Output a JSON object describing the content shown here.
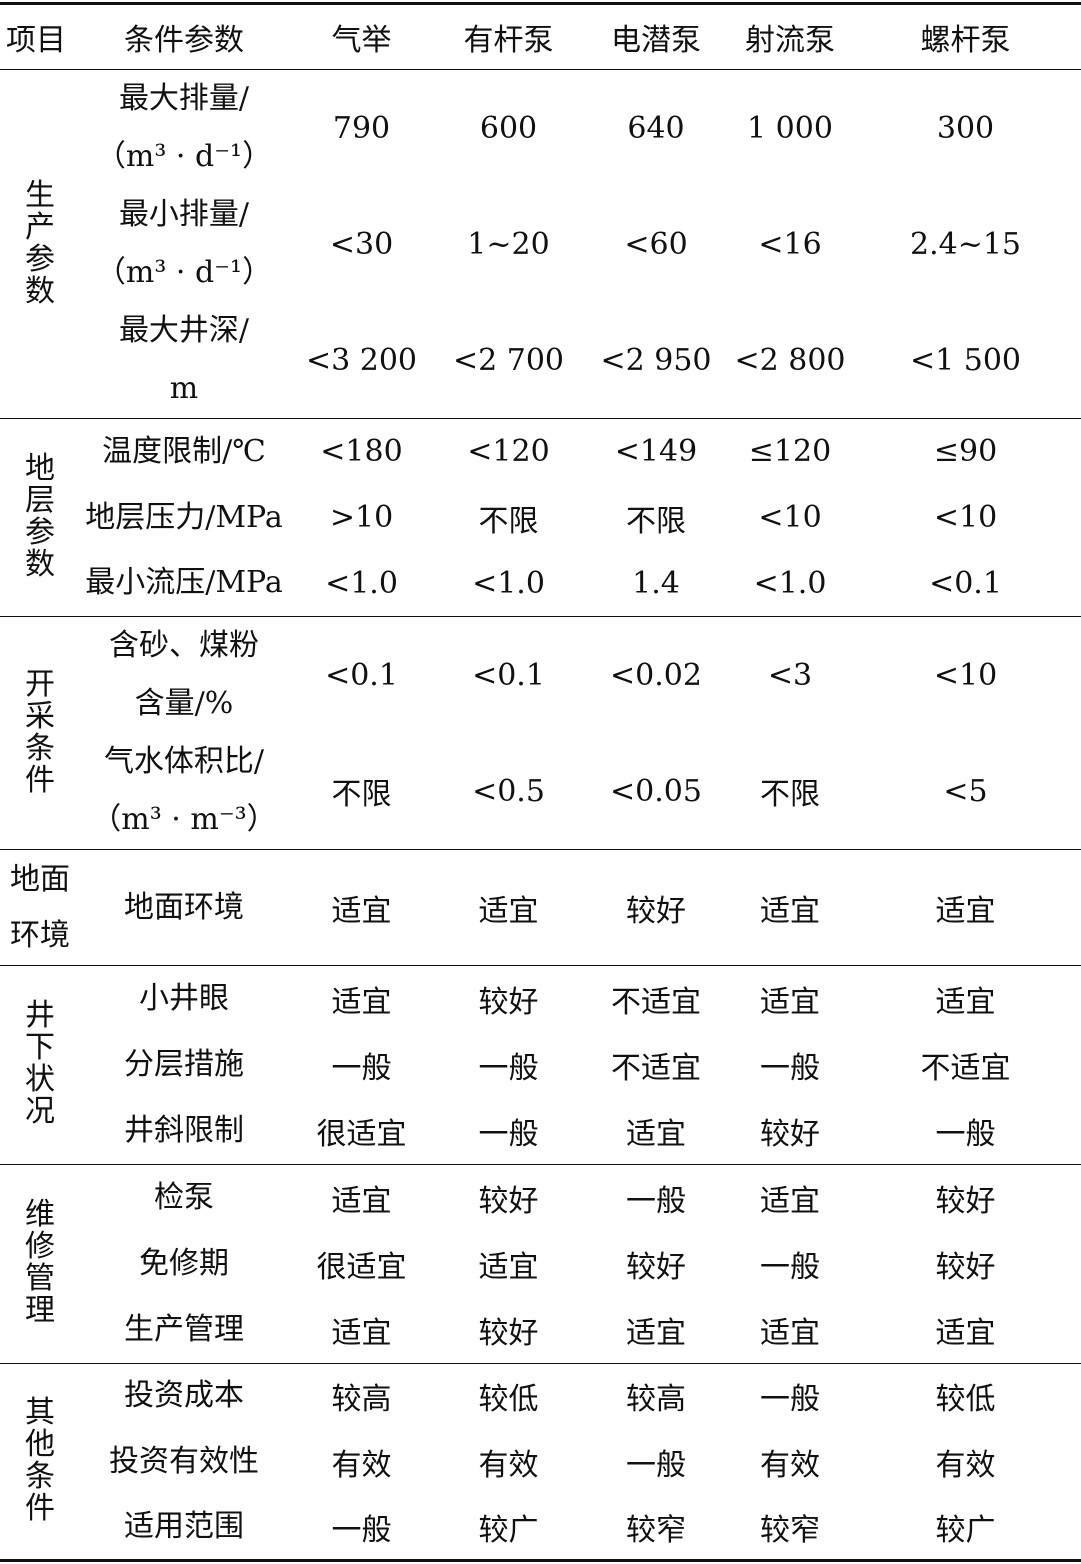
{
  "header": [
    "项目",
    "条件参数",
    "气举",
    "有杆泵",
    "电潜泵",
    "射流泵",
    "螺杆泵"
  ],
  "sections": [
    {
      "label": "生产参数",
      "style": "vertical",
      "row_height": 116,
      "rows": [
        {
          "param": [
            "最大排量/",
            "（m³ · d⁻¹）"
          ],
          "values": [
            "790",
            "600",
            "640",
            "1 000",
            "300"
          ]
        },
        {
          "param": [
            "最小排量/",
            "（m³ · d⁻¹）"
          ],
          "values": [
            "<30",
            "1~20",
            "<60",
            "<16",
            "2.4~15"
          ]
        },
        {
          "param": [
            "最大井深/",
            "m"
          ],
          "values": [
            "<3 200",
            "<2 700",
            "<2 950",
            "<2 800",
            "<1 500"
          ]
        }
      ]
    },
    {
      "label": "地层参数",
      "style": "vertical",
      "row_height": 66,
      "rows": [
        {
          "param": [
            "温度限制/℃"
          ],
          "values": [
            "<180",
            "<120",
            "<149",
            "≤120",
            "≤90"
          ]
        },
        {
          "param": [
            "地层压力/MPa"
          ],
          "values": [
            ">10",
            "不限",
            "不限",
            "<10",
            "<10"
          ]
        },
        {
          "param": [
            "最小流压/MPa"
          ],
          "values": [
            "<1.0",
            "<1.0",
            "1.4",
            "<1.0",
            "<0.1"
          ]
        }
      ]
    },
    {
      "label": "开采条件",
      "style": "vertical",
      "row_height": 116.5,
      "rows": [
        {
          "param": [
            "含砂、煤粉",
            "含量/%"
          ],
          "values": [
            "<0.1",
            "<0.1",
            "<0.02",
            "<3",
            "<10"
          ]
        },
        {
          "param": [
            "气水体积比/",
            "（m³ · m⁻³）"
          ],
          "values": [
            "不限",
            "<0.5",
            "<0.05",
            "不限",
            "<5"
          ]
        }
      ]
    },
    {
      "label": "地面环境",
      "style": "horizontal",
      "row_height": 116,
      "rows": [
        {
          "param": [
            "地面环境"
          ],
          "values": [
            "适宜",
            "适宜",
            "较好",
            "适宜",
            "适宜"
          ]
        }
      ]
    },
    {
      "label": "井下状况",
      "style": "vertical",
      "row_height": 66.3,
      "rows": [
        {
          "param": [
            "小井眼"
          ],
          "values": [
            "适宜",
            "较好",
            "不适宜",
            "适宜",
            "适宜"
          ]
        },
        {
          "param": [
            "分层措施"
          ],
          "values": [
            "一般",
            "一般",
            "不适宜",
            "一般",
            "不适宜"
          ]
        },
        {
          "param": [
            "井斜限制"
          ],
          "values": [
            "很适宜",
            "一般",
            "适宜",
            "较好",
            "一般"
          ]
        }
      ]
    },
    {
      "label": "维修管理",
      "style": "vertical",
      "row_height": 66.3,
      "rows": [
        {
          "param": [
            "检泵"
          ],
          "values": [
            "适宜",
            "较好",
            "一般",
            "适宜",
            "较好"
          ]
        },
        {
          "param": [
            "免修期"
          ],
          "values": [
            "很适宜",
            "适宜",
            "较好",
            "一般",
            "较好"
          ]
        },
        {
          "param": [
            "生产管理"
          ],
          "values": [
            "适宜",
            "较好",
            "适宜",
            "适宜",
            "适宜"
          ]
        }
      ]
    },
    {
      "label": "其他条件",
      "style": "vertical",
      "row_height": 65.7,
      "rows": [
        {
          "param": [
            "投资成本"
          ],
          "values": [
            "较高",
            "较低",
            "较高",
            "一般",
            "较低"
          ]
        },
        {
          "param": [
            "投资有效性"
          ],
          "values": [
            "有效",
            "有效",
            "一般",
            "有效",
            "有效"
          ]
        },
        {
          "param": [
            "适用范围"
          ],
          "values": [
            "一般",
            "较广",
            "较窄",
            "较窄",
            "较广"
          ]
        }
      ]
    }
  ]
}
